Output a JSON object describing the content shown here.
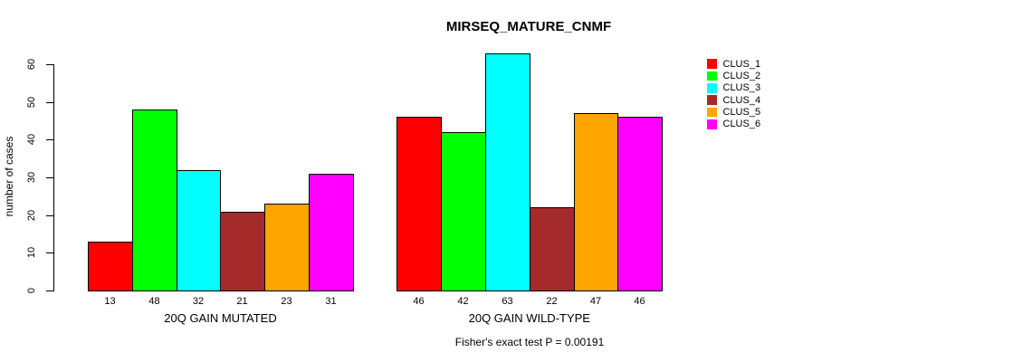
{
  "chart_data": {
    "type": "bar",
    "title": "MIRSEQ_MATURE_CNMF",
    "ylabel": "number of cases",
    "ylim": [
      0,
      60
    ],
    "yticks": [
      0,
      10,
      20,
      30,
      40,
      50,
      60
    ],
    "grid": false,
    "legend_position": "right-outside",
    "axis_color": "#000000",
    "background_color": "#FFFFFF",
    "clusters": [
      {
        "name": "CLUS_1",
        "color": "#FF0000"
      },
      {
        "name": "CLUS_2",
        "color": "#00FF00"
      },
      {
        "name": "CLUS_3",
        "color": "#00FFFF"
      },
      {
        "name": "CLUS_4",
        "color": "#A52A2A"
      },
      {
        "name": "CLUS_5",
        "color": "#FFA500"
      },
      {
        "name": "CLUS_6",
        "color": "#FF00FF"
      }
    ],
    "groups": [
      {
        "label": "20Q GAIN MUTATED",
        "values": [
          13,
          48,
          32,
          21,
          23,
          31
        ]
      },
      {
        "label": "20Q GAIN WILD-TYPE",
        "values": [
          46,
          42,
          63,
          22,
          47,
          46
        ]
      }
    ],
    "footnote": "Fisher's exact test P = 0.00191"
  }
}
